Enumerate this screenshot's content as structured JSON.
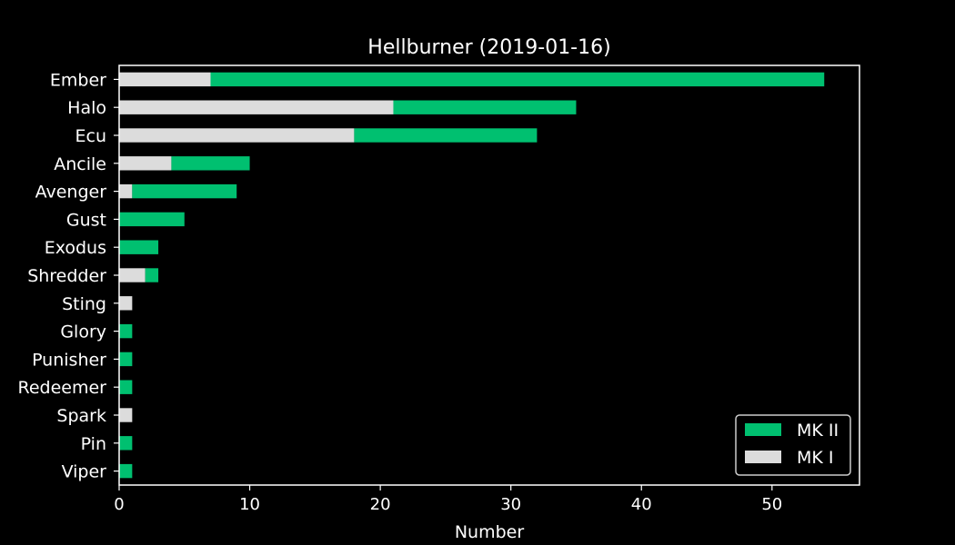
{
  "chart_data": {
    "type": "bar",
    "orientation": "horizontal",
    "stacked": true,
    "title": "Hellburner (2019-01-16)",
    "xlabel": "Number",
    "ylabel": "",
    "xlim": [
      0,
      56.7
    ],
    "xticks": [
      0,
      10,
      20,
      30,
      40,
      50
    ],
    "grid": false,
    "legend_position": "bottom-right",
    "categories": [
      "Ember",
      "Halo",
      "Ecu",
      "Ancile",
      "Avenger",
      "Gust",
      "Exodus",
      "Shredder",
      "Sting",
      "Glory",
      "Punisher",
      "Redeemer",
      "Spark",
      "Pin",
      "Viper"
    ],
    "series": [
      {
        "name": "MK I",
        "color": "#dcdcdc",
        "values": [
          7,
          21,
          18,
          4,
          1,
          0,
          0,
          2,
          1,
          0,
          0,
          0,
          1,
          0,
          0
        ]
      },
      {
        "name": "MK II",
        "color": "#00c070",
        "values": [
          47,
          14,
          14,
          6,
          8,
          5,
          3,
          1,
          0,
          1,
          1,
          1,
          0,
          1,
          1
        ]
      }
    ],
    "legend_order": [
      "MK II",
      "MK I"
    ],
    "background": "#000000",
    "foreground": "#ffffff"
  }
}
